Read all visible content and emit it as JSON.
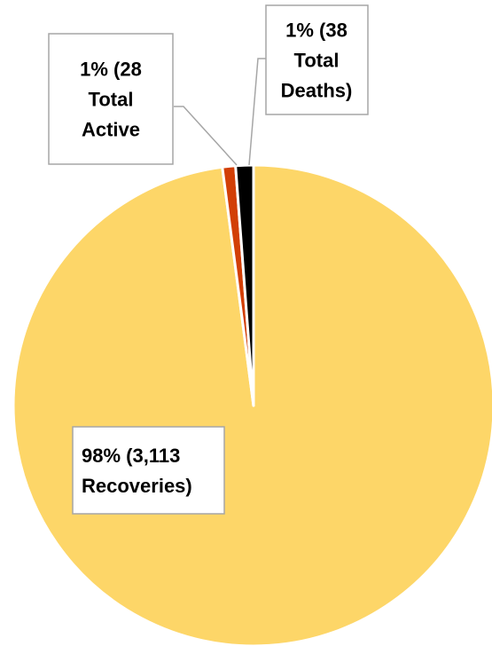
{
  "chart_data": {
    "type": "pie",
    "slices": [
      {
        "value": 3113,
        "percent": 98,
        "color": "#FDD668",
        "label_lines": [
          "98% (3,113",
          "Recoveries)"
        ]
      },
      {
        "value": 28,
        "percent": 1,
        "color": "#D23F06",
        "label_lines": [
          "1% (28",
          "Total",
          "Active"
        ]
      },
      {
        "value": 38,
        "percent": 1,
        "color": "#000000",
        "label_lines": [
          "1% (38",
          "Total",
          "Deaths)"
        ]
      }
    ],
    "legend": "none"
  }
}
